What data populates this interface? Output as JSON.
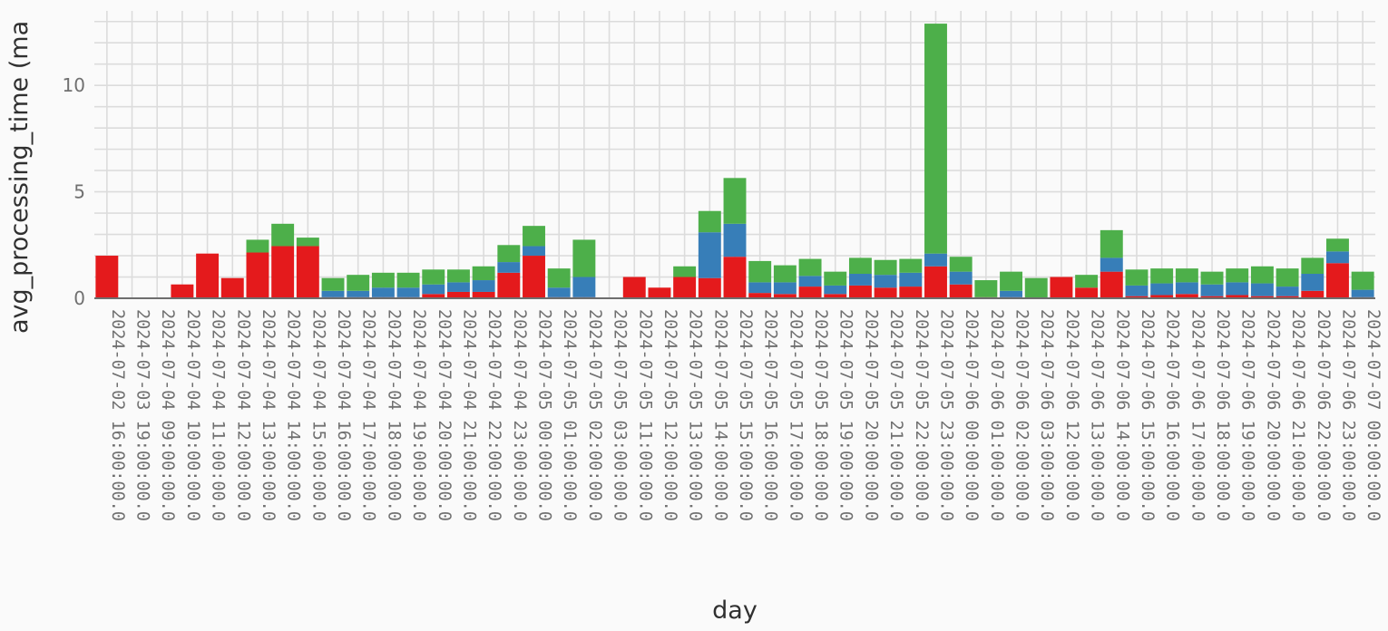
{
  "chart_data": {
    "type": "bar",
    "stacked": true,
    "xlabel": "day",
    "ylabel": "avg_processing_time (ma",
    "ylim": [
      0,
      13.5
    ],
    "yticks": [
      0,
      5,
      10
    ],
    "grid": true,
    "legend": "none",
    "colors": [
      "#e41a1c",
      "#377eb8",
      "#4daf4a"
    ],
    "categories": [
      "2024-07-02 16:00:00.0",
      "2024-07-03 19:00:00.0",
      "2024-07-04 09:00:00.0",
      "2024-07-04 10:00:00.0",
      "2024-07-04 11:00:00.0",
      "2024-07-04 12:00:00.0",
      "2024-07-04 13:00:00.0",
      "2024-07-04 14:00:00.0",
      "2024-07-04 15:00:00.0",
      "2024-07-04 16:00:00.0",
      "2024-07-04 17:00:00.0",
      "2024-07-04 18:00:00.0",
      "2024-07-04 19:00:00.0",
      "2024-07-04 20:00:00.0",
      "2024-07-04 21:00:00.0",
      "2024-07-04 22:00:00.0",
      "2024-07-04 23:00:00.0",
      "2024-07-05 00:00:00.0",
      "2024-07-05 01:00:00.0",
      "2024-07-05 02:00:00.0",
      "2024-07-05 03:00:00.0",
      "2024-07-05 11:00:00.0",
      "2024-07-05 12:00:00.0",
      "2024-07-05 13:00:00.0",
      "2024-07-05 14:00:00.0",
      "2024-07-05 15:00:00.0",
      "2024-07-05 16:00:00.0",
      "2024-07-05 17:00:00.0",
      "2024-07-05 18:00:00.0",
      "2024-07-05 19:00:00.0",
      "2024-07-05 20:00:00.0",
      "2024-07-05 21:00:00.0",
      "2024-07-05 22:00:00.0",
      "2024-07-05 23:00:00.0",
      "2024-07-06 00:00:00.0",
      "2024-07-06 01:00:00.0",
      "2024-07-06 02:00:00.0",
      "2024-07-06 03:00:00.0",
      "2024-07-06 12:00:00.0",
      "2024-07-06 13:00:00.0",
      "2024-07-06 14:00:00.0",
      "2024-07-06 15:00:00.0",
      "2024-07-06 16:00:00.0",
      "2024-07-06 17:00:00.0",
      "2024-07-06 18:00:00.0",
      "2024-07-06 19:00:00.0",
      "2024-07-06 20:00:00.0",
      "2024-07-06 21:00:00.0",
      "2024-07-06 22:00:00.0",
      "2024-07-06 23:00:00.0",
      "2024-07-07 00:00:00.0"
    ],
    "series": [
      {
        "color": "#e41a1c",
        "values": [
          2.0,
          0,
          0,
          0.65,
          2.1,
          0.95,
          2.15,
          2.45,
          2.45,
          0.05,
          0.05,
          0.05,
          0.05,
          0.2,
          0.3,
          0.3,
          1.2,
          2.0,
          0.05,
          0.05,
          0,
          1.0,
          0.5,
          1.0,
          0.95,
          1.95,
          0.25,
          0.2,
          0.55,
          0.2,
          0.6,
          0.5,
          0.55,
          1.5,
          0.65,
          0.05,
          0.05,
          0,
          1.0,
          0.5,
          1.25,
          0.1,
          0.15,
          0.2,
          0.1,
          0.15,
          0.1,
          0.1,
          0.35,
          1.65,
          0.05
        ]
      },
      {
        "color": "#377eb8",
        "values": [
          0,
          0,
          0,
          0,
          0,
          0,
          0,
          0,
          0,
          0.3,
          0.3,
          0.45,
          0.45,
          0.45,
          0.45,
          0.55,
          0.5,
          0.45,
          0.45,
          0.95,
          0,
          0,
          0,
          0,
          2.15,
          1.55,
          0.5,
          0.55,
          0.5,
          0.4,
          0.55,
          0.6,
          0.65,
          0.6,
          0.6,
          0,
          0.3,
          0,
          0,
          0,
          0.65,
          0.5,
          0.55,
          0.55,
          0.55,
          0.6,
          0.6,
          0.45,
          0.8,
          0.55,
          0.35
        ]
      },
      {
        "color": "#4daf4a",
        "values": [
          0,
          0,
          0,
          0,
          0,
          0,
          0.6,
          1.05,
          0.4,
          0.6,
          0.75,
          0.7,
          0.7,
          0.7,
          0.6,
          0.65,
          0.8,
          0.95,
          0.9,
          1.75,
          0,
          0,
          0,
          0.5,
          1.0,
          2.15,
          1.0,
          0.8,
          0.8,
          0.65,
          0.75,
          0.7,
          0.65,
          10.8,
          0.7,
          0.8,
          0.9,
          0.95,
          0,
          0.6,
          1.3,
          0.75,
          0.7,
          0.65,
          0.6,
          0.65,
          0.8,
          0.85,
          0.75,
          0.6,
          0.85
        ]
      }
    ]
  }
}
